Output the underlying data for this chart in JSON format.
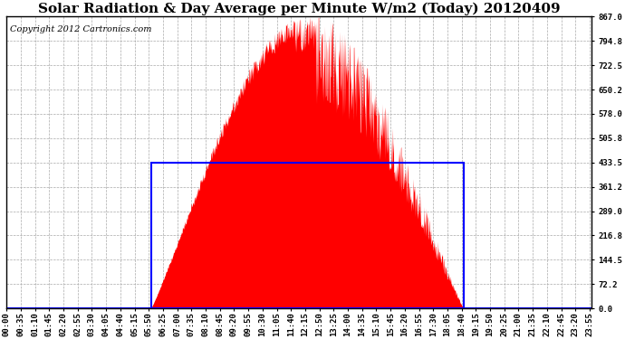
{
  "title": "Solar Radiation & Day Average per Minute W/m2 (Today) 20120409",
  "copyright": "Copyright 2012 Cartronics.com",
  "yticks": [
    0.0,
    72.2,
    144.5,
    216.8,
    289.0,
    361.2,
    433.5,
    505.8,
    578.0,
    650.2,
    722.5,
    794.8,
    867.0
  ],
  "ymax": 867.0,
  "ymin": 0.0,
  "total_minutes": 1440,
  "sunrise_minute": 355,
  "sunset_minute": 1125,
  "day_avg": 433.5,
  "peak_minute": 760,
  "peak_value": 867.0,
  "background_color": "#ffffff",
  "fill_color": "#ff0000",
  "line_color": "#0000ff",
  "grid_color": "#aaaaaa",
  "title_fontsize": 11,
  "copyright_fontsize": 7,
  "tick_label_fontsize": 6.5,
  "xtick_step": 35,
  "figwidth": 6.9,
  "figheight": 3.75,
  "dpi": 100
}
